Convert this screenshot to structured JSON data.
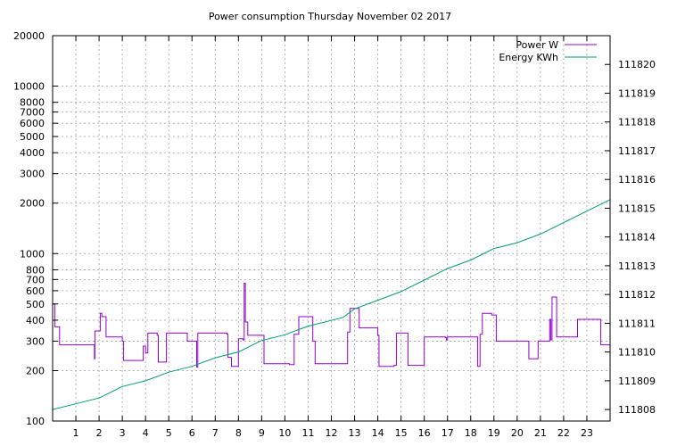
{
  "chart_data": {
    "type": "line",
    "title": "Power consumption Thursday November 02 2017",
    "xlabel": "",
    "ylabel": "",
    "y2label": "",
    "grid": true,
    "legend_position": "top-right",
    "x_range": [
      0,
      24
    ],
    "x_ticks": [
      1,
      2,
      3,
      4,
      5,
      6,
      7,
      8,
      9,
      10,
      11,
      12,
      13,
      14,
      15,
      16,
      17,
      18,
      19,
      20,
      21,
      22,
      23
    ],
    "y_scale": "log",
    "y_range": [
      100,
      20000
    ],
    "y_ticks": [
      100,
      200,
      300,
      400,
      500,
      600,
      700,
      800,
      1000,
      2000,
      3000,
      4000,
      5000,
      6000,
      7000,
      8000,
      10000,
      20000
    ],
    "y2_range": [
      111807.6,
      111821
    ],
    "y2_ticks": [
      111808,
      111809,
      111810,
      111811,
      111812,
      111813,
      111814,
      111815,
      111816,
      111817,
      111818,
      111819,
      111820
    ],
    "series": [
      {
        "name": "Power W",
        "axis": "y",
        "color": "#9400d3",
        "step": true,
        "x": [
          0,
          0.1,
          0.3,
          1.8,
          1.82,
          2.05,
          2.12,
          2.3,
          3.0,
          3.05,
          3.7,
          3.9,
          4.0,
          4.1,
          4.5,
          4.55,
          4.9,
          5.7,
          5.8,
          6.2,
          6.25,
          7.5,
          7.55,
          7.7,
          8.0,
          8.2,
          8.25,
          8.3,
          8.4,
          8.45,
          8.9,
          9.1,
          10.2,
          10.4,
          10.6,
          10.9,
          11.2,
          11.3,
          12.6,
          12.7,
          12.8,
          13.2,
          14.0,
          14.05,
          14.7,
          14.8,
          15.2,
          15.3,
          16.0,
          16.9,
          16.95,
          17.0,
          18.3,
          18.4,
          18.5,
          18.9,
          19.1,
          20.5,
          20.9,
          21.4,
          21.45,
          21.5,
          21.7,
          22.5,
          22.6,
          23.1,
          23.6
        ],
        "y": [
          500,
          365,
          285,
          235,
          345,
          440,
          420,
          318,
          300,
          230,
          230,
          280,
          255,
          335,
          325,
          225,
          335,
          335,
          300,
          210,
          335,
          330,
          240,
          212,
          310,
          305,
          665,
          390,
          325,
          325,
          325,
          220,
          217,
          330,
          420,
          420,
          300,
          220,
          220,
          340,
          470,
          360,
          325,
          212,
          215,
          335,
          335,
          215,
          318,
          315,
          305,
          318,
          212,
          330,
          440,
          430,
          300,
          235,
          300,
          405,
          305,
          550,
          318,
          318,
          405,
          405,
          285
        ]
      },
      {
        "name": "Energy KWh",
        "axis": "y2",
        "color": "#009e73",
        "step": false,
        "x": [
          0,
          1,
          2,
          2.5,
          3,
          4,
          5,
          6,
          7,
          8,
          9,
          10,
          10.5,
          11,
          12,
          12.5,
          13,
          14,
          15,
          16,
          17,
          18,
          19,
          20,
          21,
          22,
          23,
          24
        ],
        "y": [
          111808.0,
          111808.2,
          111808.4,
          111808.6,
          111808.8,
          111809.0,
          111809.3,
          111809.5,
          111809.8,
          111810.0,
          111810.4,
          111810.6,
          111810.75,
          111810.9,
          111811.1,
          111811.2,
          111811.5,
          111811.8,
          111812.1,
          111812.5,
          111812.9,
          111813.2,
          111813.6,
          111813.8,
          111814.1,
          111814.5,
          111814.9,
          111815.3
        ]
      }
    ]
  }
}
